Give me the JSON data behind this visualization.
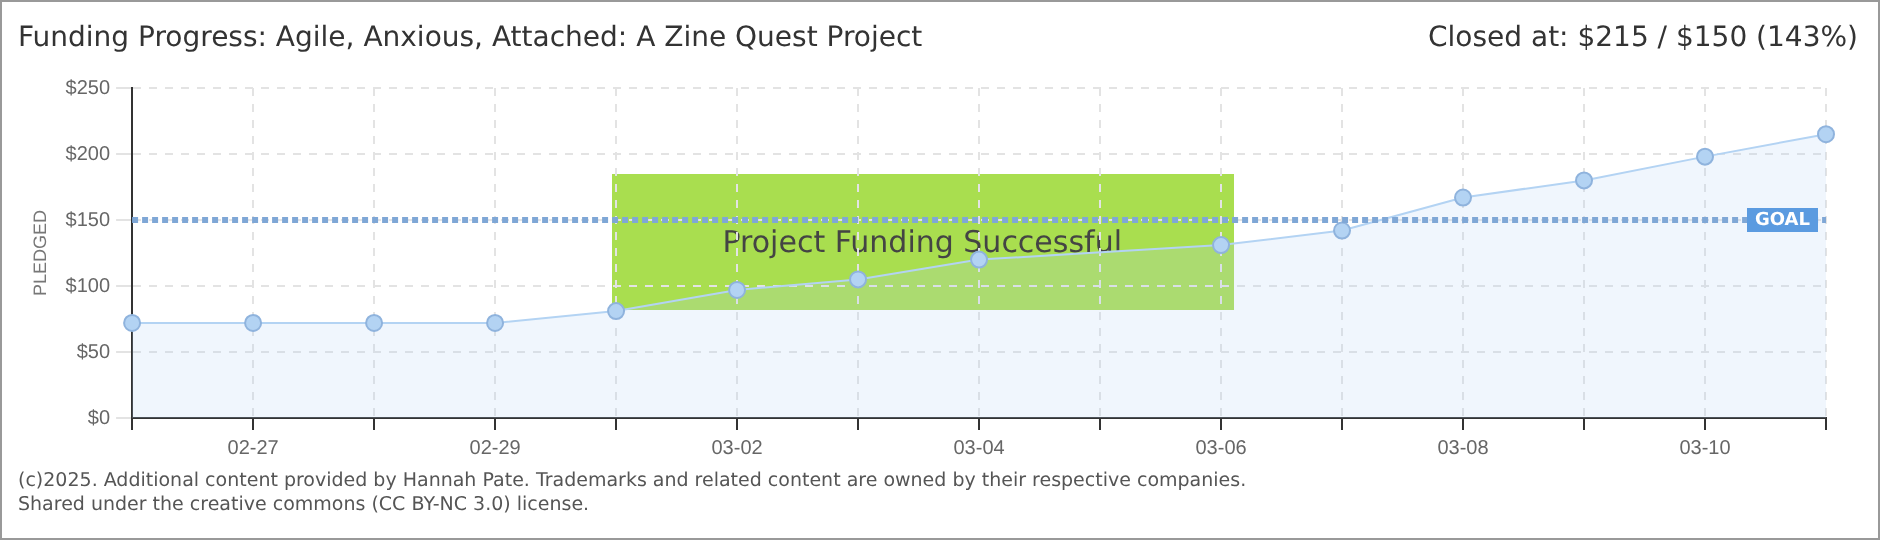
{
  "chart_data": {
    "type": "area",
    "title": "Funding Progress: Agile, Anxious, Attached: A Zine Quest Project",
    "subtitle": "Closed at: $215 / $150 (143%)",
    "ylabel": "PLEDGED",
    "categories": [
      null,
      "02-27",
      null,
      "02-29",
      null,
      "03-02",
      null,
      "03-04",
      null,
      "03-06",
      null,
      "03-08",
      null,
      "03-10",
      null
    ],
    "series": [
      {
        "color": "#b3d3f3",
        "values": [
          72,
          72,
          72,
          72,
          81,
          97,
          105,
          120,
          null,
          131,
          142,
          167,
          180,
          198,
          215
        ]
      }
    ],
    "ylim": [
      0,
      250
    ],
    "yticks": [
      {
        "value": 0,
        "label": "$0"
      },
      {
        "value": 50,
        "label": "$50"
      },
      {
        "value": 100,
        "label": "$100"
      },
      {
        "value": 150,
        "label": "$150"
      },
      {
        "value": 200,
        "label": "$200"
      },
      {
        "value": 250,
        "label": "$250"
      }
    ],
    "ref_lines": [
      {
        "axis": "y",
        "value": 150,
        "label": "GOAL",
        "color": "#7fa7d6",
        "line_style": "dotted"
      }
    ],
    "annotations": [
      "Project Funding Successful",
      "(c)2025. Additional content provided by Hannah Pate. Trademarks and related content are owned by their respective companies.",
      "Shared under the creative commons (CC BY-NC 3.0) license."
    ],
    "grid": true,
    "marker": "circle",
    "legend": false
  }
}
